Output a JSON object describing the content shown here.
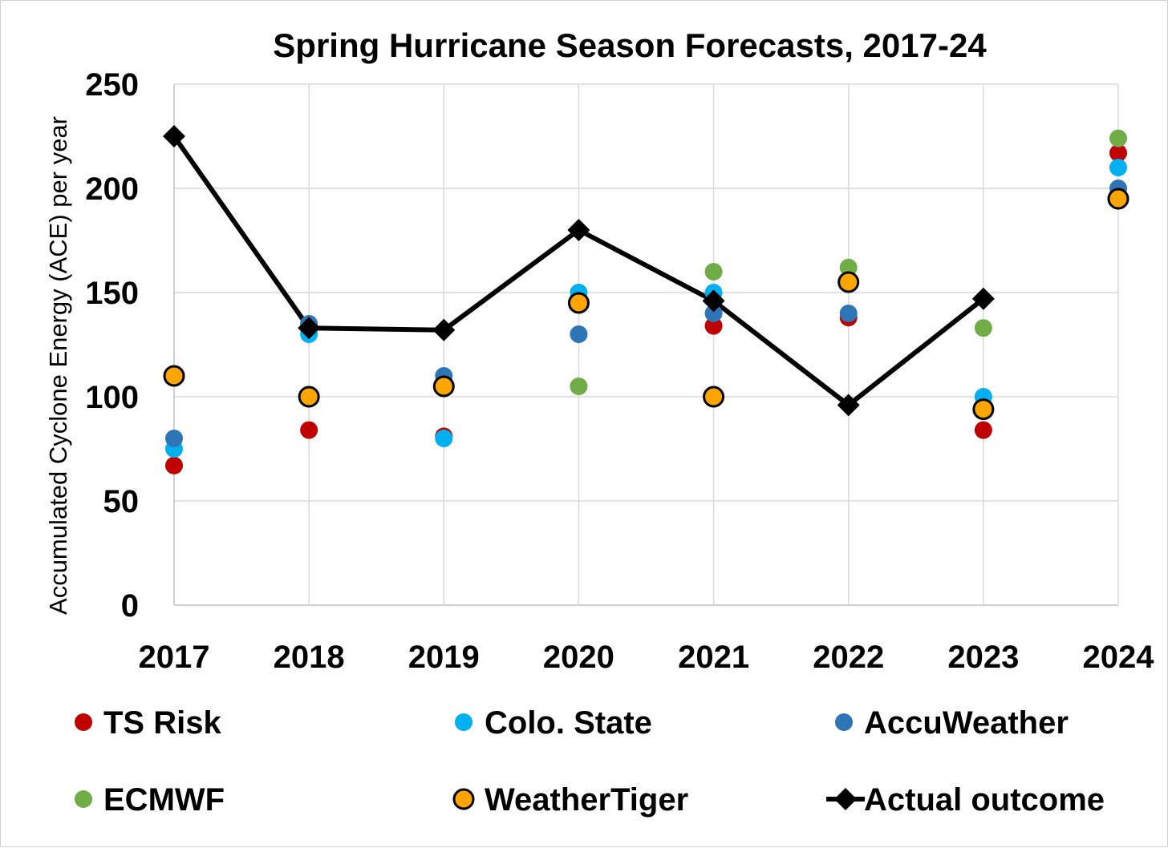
{
  "chart_data": {
    "type": "scatter",
    "title": "Spring Hurricane Season Forecasts, 2017-24",
    "ylabel": "Accumulated Cyclone Energy (ACE) per year",
    "xlabel": "",
    "categories": [
      "2017",
      "2018",
      "2019",
      "2020",
      "2021",
      "2022",
      "2023",
      "2024"
    ],
    "ylim": [
      0,
      250
    ],
    "yticks": [
      "0",
      "50",
      "100",
      "150",
      "200",
      "250"
    ],
    "grid": true,
    "legend_position": "bottom",
    "series": [
      {
        "name": "TS Risk",
        "color": "#c00000",
        "marker": "circle",
        "values": [
          67,
          84,
          81,
          null,
          134,
          138,
          84,
          217
        ]
      },
      {
        "name": "Colo. State",
        "color": "#00b0f0",
        "marker": "circle",
        "values": [
          75,
          130,
          80,
          150,
          150,
          null,
          100,
          210
        ]
      },
      {
        "name": "AccuWeather",
        "color": "#2e75b6",
        "marker": "circle",
        "values": [
          80,
          135,
          110,
          130,
          140,
          140,
          null,
          200
        ]
      },
      {
        "name": "ECMWF",
        "color": "#70ad47",
        "marker": "circle",
        "values": [
          null,
          null,
          null,
          105,
          160,
          162,
          133,
          224
        ]
      },
      {
        "name": "WeatherTiger",
        "color": "#ffa500",
        "marker": "circle-outlined",
        "values": [
          110,
          100,
          105,
          145,
          100,
          155,
          94,
          195
        ]
      },
      {
        "name": "Actual outcome",
        "color": "#000000",
        "marker": "diamond-line",
        "values": [
          225,
          133,
          132,
          180,
          146,
          96,
          147,
          null
        ]
      }
    ]
  }
}
